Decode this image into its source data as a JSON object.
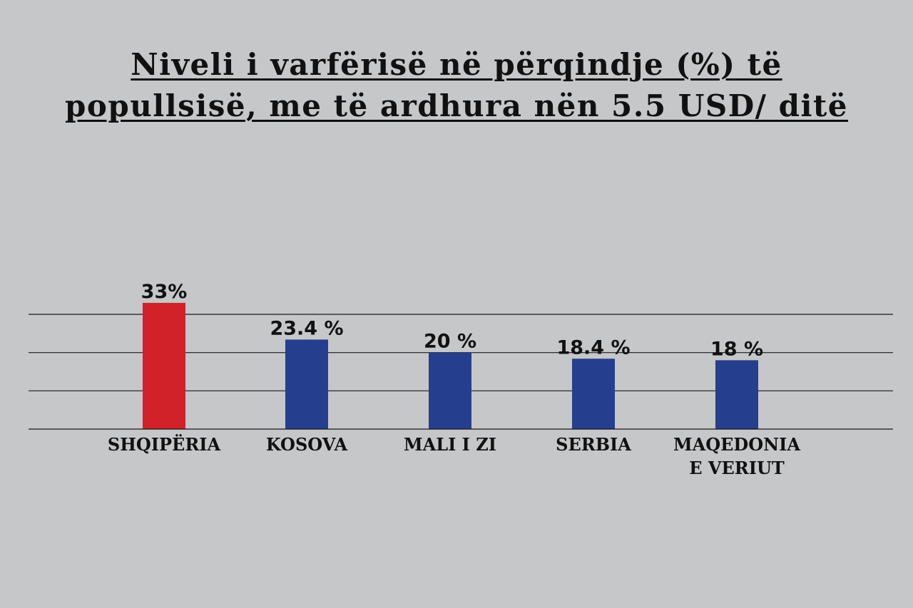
{
  "chart_data": {
    "type": "bar",
    "title_lines": [
      "Niveli i varfërisë në përqindje (%) të",
      "popullsisë, me të ardhura nën 5.5 USD/ ditë"
    ],
    "categories": [
      "SHQIPËRIA",
      "KOSOVA",
      "MALI I ZI",
      "SERBIA",
      "MAQEDONIA E VERIUT"
    ],
    "category_lines": [
      [
        "SHQIPËRIA"
      ],
      [
        "KOSOVA"
      ],
      [
        "MALI I ZI"
      ],
      [
        "SERBIA"
      ],
      [
        "MAQEDONIA",
        "E VERIUT"
      ]
    ],
    "values": [
      33,
      23.4,
      20,
      18.4,
      18
    ],
    "value_labels": [
      "33%",
      "23.4 %",
      "20 %",
      "18.4 %",
      "18 %"
    ],
    "bar_colors": [
      "#d12229",
      "#253e8e",
      "#253e8e",
      "#253e8e",
      "#253e8e"
    ],
    "ylim": [
      0,
      30
    ],
    "gridlines": [
      10,
      20,
      30
    ],
    "grid": true,
    "xlabel": "",
    "ylabel": ""
  }
}
